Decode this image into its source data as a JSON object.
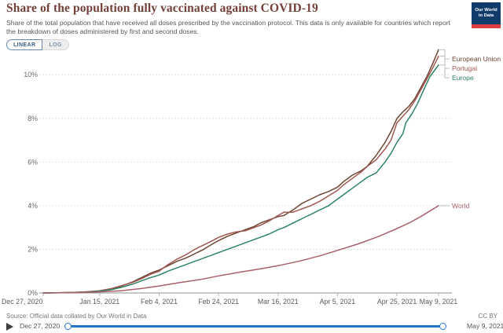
{
  "header": {
    "title": "Share of the population fully vaccinated against COVID-19",
    "subtitle": "Share of the total population that have received all doses prescribed by the vaccination protocol. This data is only available for countries which report the breakdown of doses administered by first and second doses.",
    "logo": {
      "line1": "Our World",
      "line2": "in Data",
      "bg_color": "#103b6b",
      "stripe_color": "#dc3e41"
    }
  },
  "controls": {
    "linear_label": "LINEAR",
    "log_label": "LOG",
    "active_scale": "LINEAR",
    "accent_color": "#3a5e84"
  },
  "chart_data": {
    "type": "line",
    "title": "Share of the population fully vaccinated against COVID-19",
    "xlabel": "",
    "ylabel": "",
    "ylim": [
      0,
      11.5
    ],
    "yticks": [
      0,
      2,
      4,
      6,
      8,
      10
    ],
    "ytick_suffix": "%",
    "grid": "horizontal dashed",
    "legend_position": "right of line ends",
    "x_unit": "days since Dec 27, 2020",
    "x_ticks": [
      {
        "day": 0,
        "label": "Dec 27, 2020"
      },
      {
        "day": 19,
        "label": "Jan 15, 2021"
      },
      {
        "day": 39,
        "label": "Feb 4, 2021"
      },
      {
        "day": 59,
        "label": "Feb 24, 2021"
      },
      {
        "day": 79,
        "label": "Mar 16, 2021"
      },
      {
        "day": 99,
        "label": "Apr 5, 2021"
      },
      {
        "day": 119,
        "label": "Apr 25, 2021"
      },
      {
        "day": 133,
        "label": "May 9, 2021"
      }
    ],
    "series": [
      {
        "name": "European Union",
        "color": "#6e4432",
        "points": [
          [
            0,
            0
          ],
          [
            5,
            0.01
          ],
          [
            10,
            0.02
          ],
          [
            14,
            0.04
          ],
          [
            19,
            0.09
          ],
          [
            23,
            0.18
          ],
          [
            26,
            0.3
          ],
          [
            30,
            0.5
          ],
          [
            33,
            0.7
          ],
          [
            36,
            0.9
          ],
          [
            39,
            1.05
          ],
          [
            42,
            1.25
          ],
          [
            45,
            1.45
          ],
          [
            48,
            1.6
          ],
          [
            51,
            1.8
          ],
          [
            54,
            2.0
          ],
          [
            57,
            2.25
          ],
          [
            59,
            2.4
          ],
          [
            62,
            2.6
          ],
          [
            65,
            2.75
          ],
          [
            68,
            2.9
          ],
          [
            71,
            3.05
          ],
          [
            73,
            3.2
          ],
          [
            76,
            3.35
          ],
          [
            79,
            3.5
          ],
          [
            81,
            3.55
          ],
          [
            84,
            3.8
          ],
          [
            87,
            4.1
          ],
          [
            90,
            4.3
          ],
          [
            93,
            4.5
          ],
          [
            96,
            4.65
          ],
          [
            99,
            4.85
          ],
          [
            101,
            5.1
          ],
          [
            104,
            5.4
          ],
          [
            107,
            5.6
          ],
          [
            109,
            5.8
          ],
          [
            112,
            6.3
          ],
          [
            115,
            6.9
          ],
          [
            117,
            7.4
          ],
          [
            119,
            8.0
          ],
          [
            121,
            8.3
          ],
          [
            123,
            8.55
          ],
          [
            125,
            8.9
          ],
          [
            127,
            9.4
          ],
          [
            129,
            9.9
          ],
          [
            131,
            10.5
          ],
          [
            133,
            11.15
          ]
        ]
      },
      {
        "name": "Portugal",
        "color": "#a25752",
        "points": [
          [
            0,
            0
          ],
          [
            5,
            0.01
          ],
          [
            10,
            0.02
          ],
          [
            14,
            0.05
          ],
          [
            19,
            0.1
          ],
          [
            23,
            0.2
          ],
          [
            26,
            0.32
          ],
          [
            30,
            0.48
          ],
          [
            33,
            0.65
          ],
          [
            36,
            0.85
          ],
          [
            39,
            1.0
          ],
          [
            42,
            1.3
          ],
          [
            45,
            1.55
          ],
          [
            48,
            1.75
          ],
          [
            51,
            2.0
          ],
          [
            54,
            2.2
          ],
          [
            57,
            2.4
          ],
          [
            59,
            2.55
          ],
          [
            62,
            2.7
          ],
          [
            65,
            2.8
          ],
          [
            68,
            2.85
          ],
          [
            71,
            3.0
          ],
          [
            73,
            3.1
          ],
          [
            76,
            3.3
          ],
          [
            79,
            3.55
          ],
          [
            81,
            3.7
          ],
          [
            84,
            3.7
          ],
          [
            87,
            3.85
          ],
          [
            90,
            4.0
          ],
          [
            93,
            4.2
          ],
          [
            96,
            4.45
          ],
          [
            99,
            4.7
          ],
          [
            101,
            4.95
          ],
          [
            104,
            5.25
          ],
          [
            107,
            5.55
          ],
          [
            109,
            5.8
          ],
          [
            112,
            6.1
          ],
          [
            115,
            6.6
          ],
          [
            117,
            7.0
          ],
          [
            119,
            7.8
          ],
          [
            121,
            8.1
          ],
          [
            123,
            8.4
          ],
          [
            125,
            8.8
          ],
          [
            127,
            9.3
          ],
          [
            129,
            9.8
          ],
          [
            131,
            10.3
          ],
          [
            133,
            10.85
          ]
        ]
      },
      {
        "name": "Europe",
        "color": "#2c8465",
        "points": [
          [
            0,
            0
          ],
          [
            5,
            0.01
          ],
          [
            10,
            0.02
          ],
          [
            14,
            0.04
          ],
          [
            19,
            0.08
          ],
          [
            23,
            0.15
          ],
          [
            26,
            0.25
          ],
          [
            30,
            0.4
          ],
          [
            33,
            0.55
          ],
          [
            36,
            0.7
          ],
          [
            39,
            0.82
          ],
          [
            42,
            1.0
          ],
          [
            45,
            1.15
          ],
          [
            48,
            1.3
          ],
          [
            51,
            1.45
          ],
          [
            54,
            1.6
          ],
          [
            57,
            1.75
          ],
          [
            59,
            1.85
          ],
          [
            62,
            2.0
          ],
          [
            65,
            2.15
          ],
          [
            68,
            2.3
          ],
          [
            71,
            2.45
          ],
          [
            73,
            2.55
          ],
          [
            76,
            2.7
          ],
          [
            79,
            2.9
          ],
          [
            81,
            3.0
          ],
          [
            84,
            3.2
          ],
          [
            87,
            3.4
          ],
          [
            90,
            3.6
          ],
          [
            93,
            3.8
          ],
          [
            96,
            4.0
          ],
          [
            99,
            4.3
          ],
          [
            101,
            4.5
          ],
          [
            104,
            4.8
          ],
          [
            107,
            5.1
          ],
          [
            109,
            5.3
          ],
          [
            112,
            5.5
          ],
          [
            115,
            6.0
          ],
          [
            117,
            6.4
          ],
          [
            119,
            6.9
          ],
          [
            121,
            7.3
          ],
          [
            122,
            7.8
          ],
          [
            124,
            8.2
          ],
          [
            126,
            8.7
          ],
          [
            128,
            9.3
          ],
          [
            130,
            9.9
          ],
          [
            133,
            10.45
          ]
        ]
      },
      {
        "name": "World",
        "color": "#a9606c",
        "points": [
          [
            0,
            0
          ],
          [
            7,
            0.01
          ],
          [
            14,
            0.03
          ],
          [
            19,
            0.05
          ],
          [
            26,
            0.1
          ],
          [
            33,
            0.2
          ],
          [
            39,
            0.32
          ],
          [
            46,
            0.48
          ],
          [
            53,
            0.62
          ],
          [
            59,
            0.78
          ],
          [
            66,
            0.95
          ],
          [
            73,
            1.1
          ],
          [
            79,
            1.25
          ],
          [
            86,
            1.45
          ],
          [
            93,
            1.7
          ],
          [
            99,
            1.95
          ],
          [
            106,
            2.25
          ],
          [
            113,
            2.6
          ],
          [
            119,
            2.95
          ],
          [
            123,
            3.2
          ],
          [
            127,
            3.5
          ],
          [
            130,
            3.75
          ],
          [
            133,
            4.0
          ]
        ]
      }
    ]
  },
  "footer": {
    "source": "Source: Official data collated by Our World in Data",
    "license": "CC BY"
  },
  "timeline": {
    "start_label": "Dec 27, 2020",
    "end_label": "May 9, 2021",
    "track_color": "#2673cc"
  }
}
